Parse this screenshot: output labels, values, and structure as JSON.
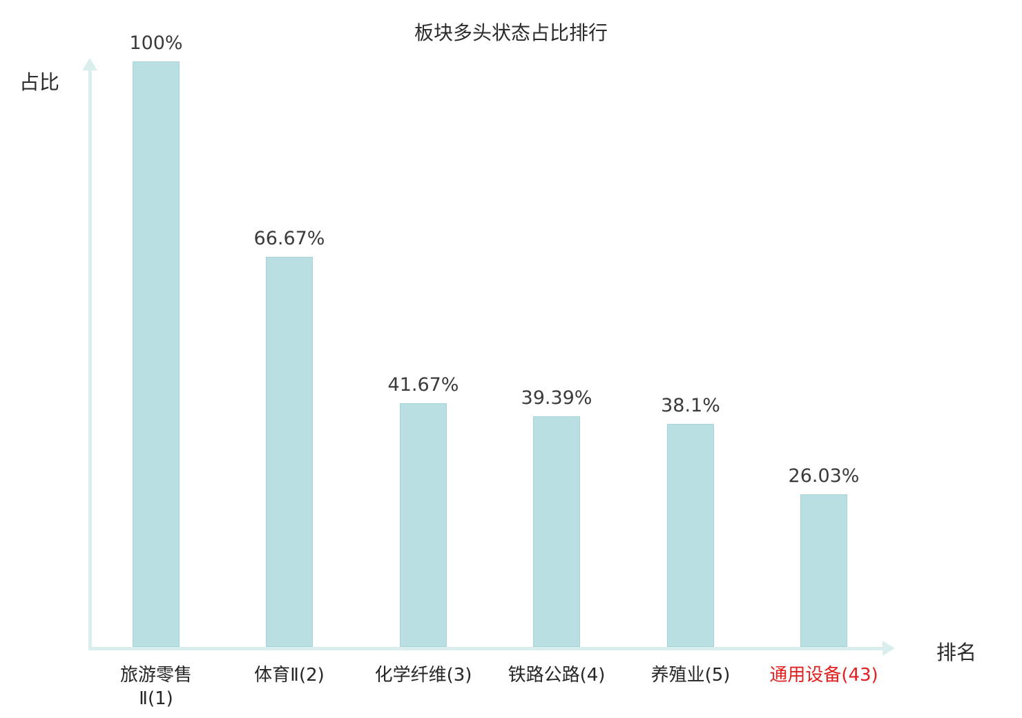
{
  "chart_data": {
    "type": "bar",
    "title": "板块多头状态占比排行",
    "xlabel": "排名",
    "ylabel": "占比",
    "categories": [
      "旅游零售\nⅡ(1)",
      "体育Ⅱ(2)",
      "化学纤维(3)",
      "铁路公路(4)",
      "养殖业(5)",
      "通用设备(43)"
    ],
    "values": [
      100,
      66.67,
      41.67,
      39.39,
      38.1,
      26.03
    ],
    "value_labels": [
      "100%",
      "66.67%",
      "41.67%",
      "39.39%",
      "38.1%",
      "26.03%"
    ],
    "highlight_index": 5,
    "ylim": [
      0,
      100
    ],
    "grid": false,
    "legend": "none",
    "colors": {
      "bar_fill": "#b9dfe2",
      "bar_stroke": "#a4d2d6",
      "axis": "#daefed",
      "value_text": "#3a3a3a",
      "category_text": "#262626",
      "highlight_category_text": "#e01f1f"
    }
  }
}
